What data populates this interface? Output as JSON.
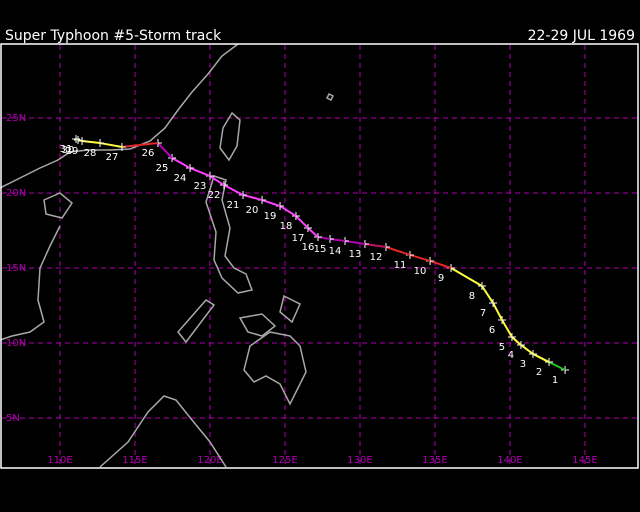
{
  "header": {
    "title": "Super Typhoon #5-Storm track",
    "dates": "22-29 JUL 1969"
  },
  "map": {
    "lat_grid": [
      {
        "value": 25,
        "label": "25N"
      },
      {
        "value": 20,
        "label": "20N"
      },
      {
        "value": 15,
        "label": "15N"
      },
      {
        "value": 10,
        "label": "10N"
      },
      {
        "value": 5,
        "label": "5N"
      }
    ],
    "lon_grid": [
      {
        "value": 110,
        "label": "110E"
      },
      {
        "value": 115,
        "label": "115E"
      },
      {
        "value": 120,
        "label": "120E"
      },
      {
        "value": 125,
        "label": "125E"
      },
      {
        "value": 130,
        "label": "130E"
      },
      {
        "value": 135,
        "label": "135E"
      },
      {
        "value": 140,
        "label": "140E"
      },
      {
        "value": 145,
        "label": "145E"
      }
    ],
    "track": [
      {
        "label": "1",
        "lon": 143.67,
        "lat": 8.2,
        "color": "#20c020"
      },
      {
        "label": "2",
        "lon": 142.6,
        "lat": 8.73,
        "color": "#20c020"
      },
      {
        "label": "3",
        "lon": 141.53,
        "lat": 9.27,
        "color": "#ffff40"
      },
      {
        "label": "4",
        "lon": 140.73,
        "lat": 9.87,
        "color": "#ffff40"
      },
      {
        "label": "5",
        "lon": 140.13,
        "lat": 10.4,
        "color": "#ffff40"
      },
      {
        "label": "6",
        "lon": 139.47,
        "lat": 11.53,
        "color": "#ffff40"
      },
      {
        "label": "7",
        "lon": 138.87,
        "lat": 12.67,
        "color": "#ffff40"
      },
      {
        "label": "8",
        "lon": 138.13,
        "lat": 13.8,
        "color": "#ffff40"
      },
      {
        "label": "9",
        "lon": 136.07,
        "lat": 15.0,
        "color": "#ffff40"
      },
      {
        "label": "10",
        "lon": 134.67,
        "lat": 15.47,
        "color": "#e02828"
      },
      {
        "label": "11",
        "lon": 133.33,
        "lat": 15.87,
        "color": "#e02828"
      },
      {
        "label": "12",
        "lon": 131.73,
        "lat": 16.4,
        "color": "#e02828"
      },
      {
        "label": "13",
        "lon": 130.33,
        "lat": 16.6,
        "color": "#c01060"
      },
      {
        "label": "14",
        "lon": 129.0,
        "lat": 16.8,
        "color": "#b000b0"
      },
      {
        "label": "15",
        "lon": 128.0,
        "lat": 16.93,
        "color": "#b000b0"
      },
      {
        "label": "16",
        "lon": 127.2,
        "lat": 17.07,
        "color": "#b000b0"
      },
      {
        "label": "17",
        "lon": 126.53,
        "lat": 17.67,
        "color": "#ff40ff"
      },
      {
        "label": "18",
        "lon": 125.73,
        "lat": 18.47,
        "color": "#ff40ff"
      },
      {
        "label": "19",
        "lon": 124.67,
        "lat": 19.13,
        "color": "#ff40ff"
      },
      {
        "label": "20",
        "lon": 123.47,
        "lat": 19.53,
        "color": "#ff40ff"
      },
      {
        "label": "21",
        "lon": 122.2,
        "lat": 19.87,
        "color": "#ff40ff"
      },
      {
        "label": "22",
        "lon": 120.93,
        "lat": 20.53,
        "color": "#ff40ff"
      },
      {
        "label": "23",
        "lon": 120.0,
        "lat": 21.13,
        "color": "#ff40ff"
      },
      {
        "label": "24",
        "lon": 118.67,
        "lat": 21.67,
        "color": "#ff40ff"
      },
      {
        "label": "25",
        "lon": 117.47,
        "lat": 22.33,
        "color": "#ff40ff"
      },
      {
        "label": "26",
        "lon": 116.53,
        "lat": 23.33,
        "color": "#c000c0"
      },
      {
        "label": "27",
        "lon": 114.13,
        "lat": 23.07,
        "color": "#e02828"
      },
      {
        "label": "28",
        "lon": 112.67,
        "lat": 23.33,
        "color": "#ffff40"
      },
      {
        "label": "29",
        "lon": 111.47,
        "lat": 23.47,
        "color": "#ffff40"
      },
      {
        "label": "30",
        "lon": 111.2,
        "lat": 23.53,
        "color": "#ffff40"
      },
      {
        "label": "31",
        "lon": 111.07,
        "lat": 23.6,
        "color": "#20c020"
      }
    ]
  }
}
